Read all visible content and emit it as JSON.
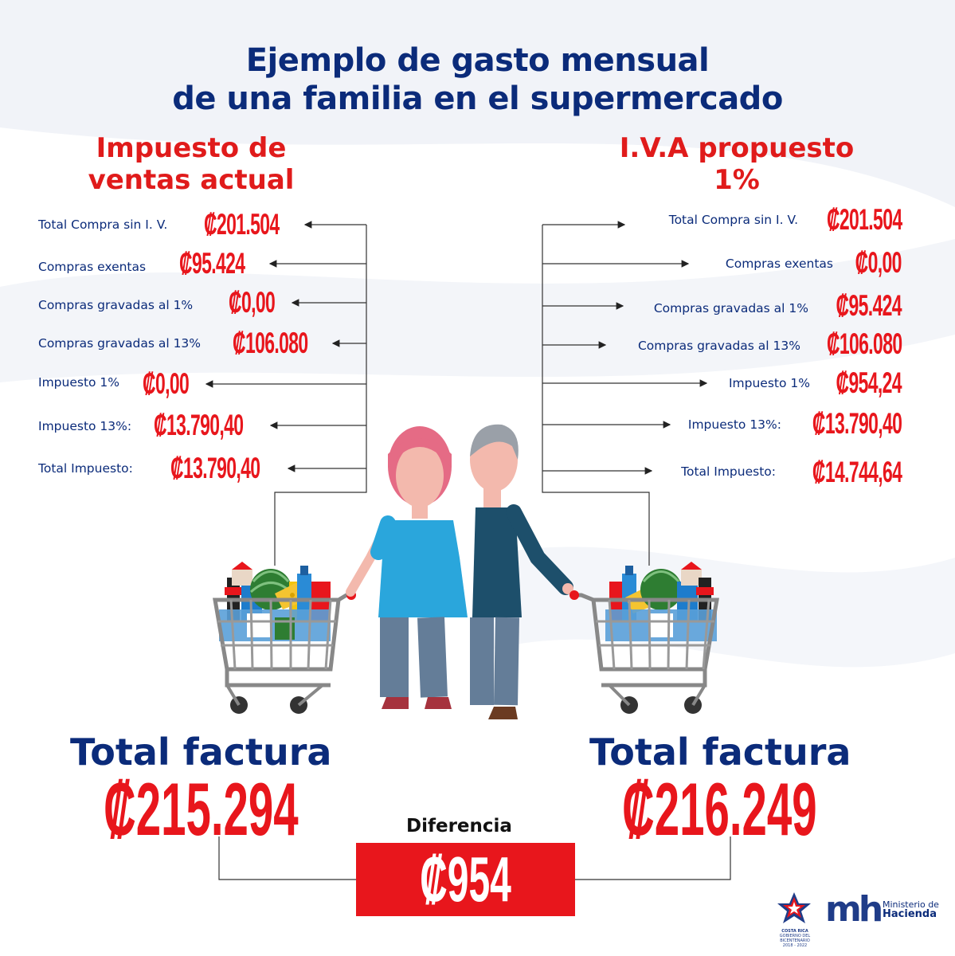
{
  "title": {
    "line1": "Ejemplo de gasto mensual",
    "line2": "de una familia en el  supermercado"
  },
  "left": {
    "heading_line1": "Impuesto de",
    "heading_line2": "ventas actual",
    "rows": [
      {
        "label": "Total Compra sin I. V.",
        "value": "₡201.504"
      },
      {
        "label": "Compras exentas",
        "value": "₡95.424"
      },
      {
        "label": "Compras gravadas al 1%",
        "value": "₡0,00"
      },
      {
        "label": "Compras gravadas al 13%",
        "value": "₡106.080"
      },
      {
        "label": "Impuesto 1%",
        "value": "₡0,00"
      },
      {
        "label": "Impuesto 13%:",
        "value": "₡13.790,40"
      },
      {
        "label": "Total Impuesto:",
        "value": "₡13.790,40"
      }
    ],
    "total_label": "Total factura",
    "total_value": "₡215.294"
  },
  "right": {
    "heading_line1": "I.V.A propuesto",
    "heading_line2": "1%",
    "rows": [
      {
        "label": "Total Compra sin I. V.",
        "value": "₡201.504"
      },
      {
        "label": "Compras exentas",
        "value": "₡0,00"
      },
      {
        "label": "Compras gravadas al 1%",
        "value": "₡95.424"
      },
      {
        "label": "Compras gravadas al 13%",
        "value": "₡106.080"
      },
      {
        "label": "Impuesto 1%",
        "value": "₡954,24"
      },
      {
        "label": "Impuesto 13%:",
        "value": "₡13.790,40"
      },
      {
        "label": "Total Impuesto:",
        "value": "₡14.744,64"
      }
    ],
    "total_label": "Total factura",
    "total_value": "₡216.249"
  },
  "difference": {
    "label": "Diferencia",
    "value": "₡954"
  },
  "logos": {
    "costa_rica_line1": "COSTA RICA",
    "costa_rica_line2": "GOBIERNO DEL BICENTENARIO",
    "costa_rica_line3": "2018 - 2022",
    "ministry_mark": "mh",
    "ministry_line1": "Ministerio de",
    "ministry_line2": "Hacienda"
  },
  "colors": {
    "navy": "#0b2b7a",
    "red": "#e8161c",
    "woman_shirt": "#2aa6dc",
    "man_shirt": "#1d4f6b",
    "skin": "#f3b9ad"
  }
}
